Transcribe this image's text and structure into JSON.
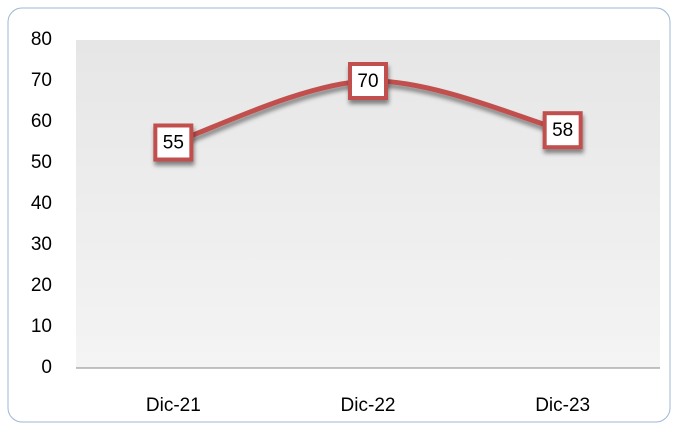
{
  "chart_data": {
    "type": "line",
    "categories": [
      "Dic-21",
      "Dic-22",
      "Dic-23"
    ],
    "values": [
      55,
      70,
      58
    ],
    "color": "#c0504d",
    "ylim": [
      0,
      80
    ],
    "yticks": [
      0,
      10,
      20,
      30,
      40,
      50,
      60,
      70,
      80
    ],
    "smooth": true,
    "data_labels": true
  }
}
